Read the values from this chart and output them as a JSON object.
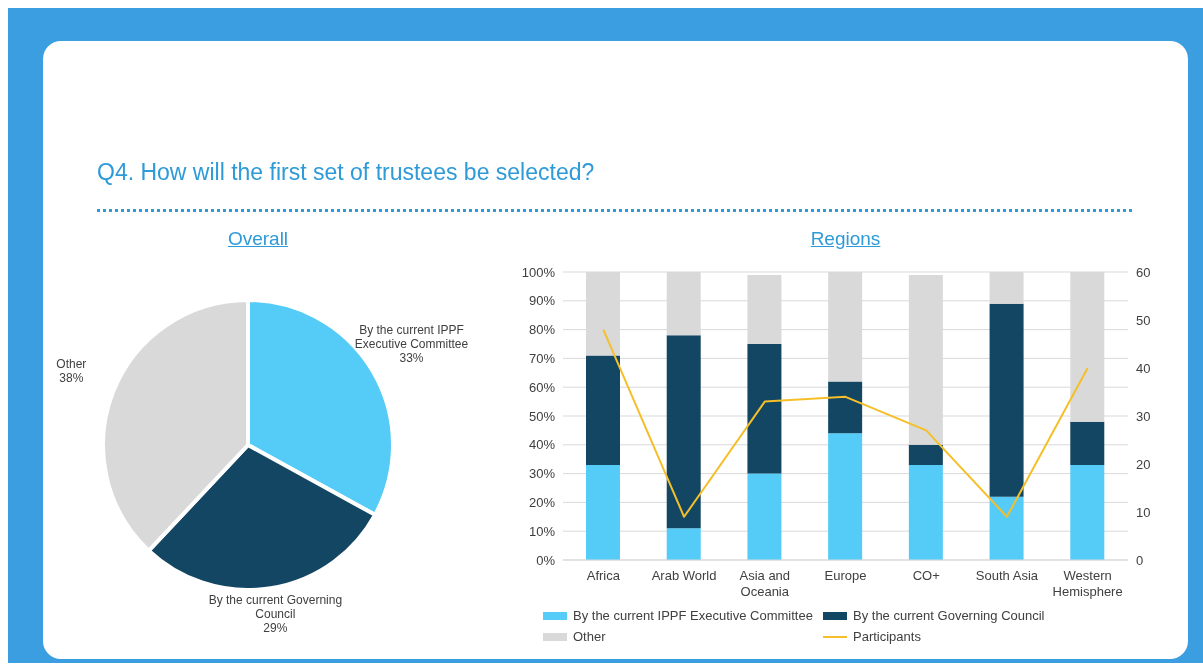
{
  "chart_data": [
    {
      "type": "pie",
      "title": "Overall",
      "annotations": [
        "Q4. How will the first set of trustees be selected?"
      ],
      "categories": [
        "By the current IPPF Executive Committee",
        "By the current Governing Council",
        "Other"
      ],
      "values": [
        33,
        29,
        38
      ],
      "value_labels": [
        "33%",
        "29%",
        "38%"
      ],
      "colors": [
        "#55cbf7",
        "#134663",
        "#d9d9d9"
      ],
      "legend": false
    },
    {
      "type": "bar",
      "title": "Regions",
      "stacked": true,
      "categories": [
        "Africa",
        "Arab World",
        "Asia and Oceania",
        "Europe",
        "CO+",
        "South Asia",
        "Western Hemisphere"
      ],
      "series": [
        {
          "name": "By the current IPPF Executive Committee",
          "color": "#55cbf7",
          "values": [
            33,
            11,
            30,
            44,
            33,
            22,
            33
          ]
        },
        {
          "name": "By the current Governing Council",
          "color": "#134663",
          "values": [
            38,
            67,
            45,
            18,
            7,
            67,
            15
          ]
        },
        {
          "name": "Other",
          "color": "#d9d9d9",
          "values": [
            29,
            22,
            24,
            38,
            59,
            11,
            52
          ]
        },
        {
          "name": "Participants",
          "type": "line",
          "axis": "y2",
          "color": "#f5bf2a",
          "values": [
            48,
            9,
            33,
            34,
            27,
            9,
            40
          ]
        }
      ],
      "ylim": [
        0,
        100
      ],
      "yticks": [
        {
          "value": 0,
          "label": "0%"
        },
        {
          "value": 10,
          "label": "10%"
        },
        {
          "value": 20,
          "label": "20%"
        },
        {
          "value": 30,
          "label": "30%"
        },
        {
          "value": 40,
          "label": "40%"
        },
        {
          "value": 50,
          "label": "50%"
        },
        {
          "value": 60,
          "label": "60%"
        },
        {
          "value": 70,
          "label": "70%"
        },
        {
          "value": 80,
          "label": "80%"
        },
        {
          "value": 90,
          "label": "90%"
        },
        {
          "value": 100,
          "label": "100%"
        }
      ],
      "y2lim": [
        0,
        60
      ],
      "y2ticks": [
        0,
        10,
        20,
        30,
        40,
        50,
        60
      ],
      "grid": "y",
      "legend": "bottom",
      "marker": "none",
      "line_style": "solid"
    }
  ]
}
